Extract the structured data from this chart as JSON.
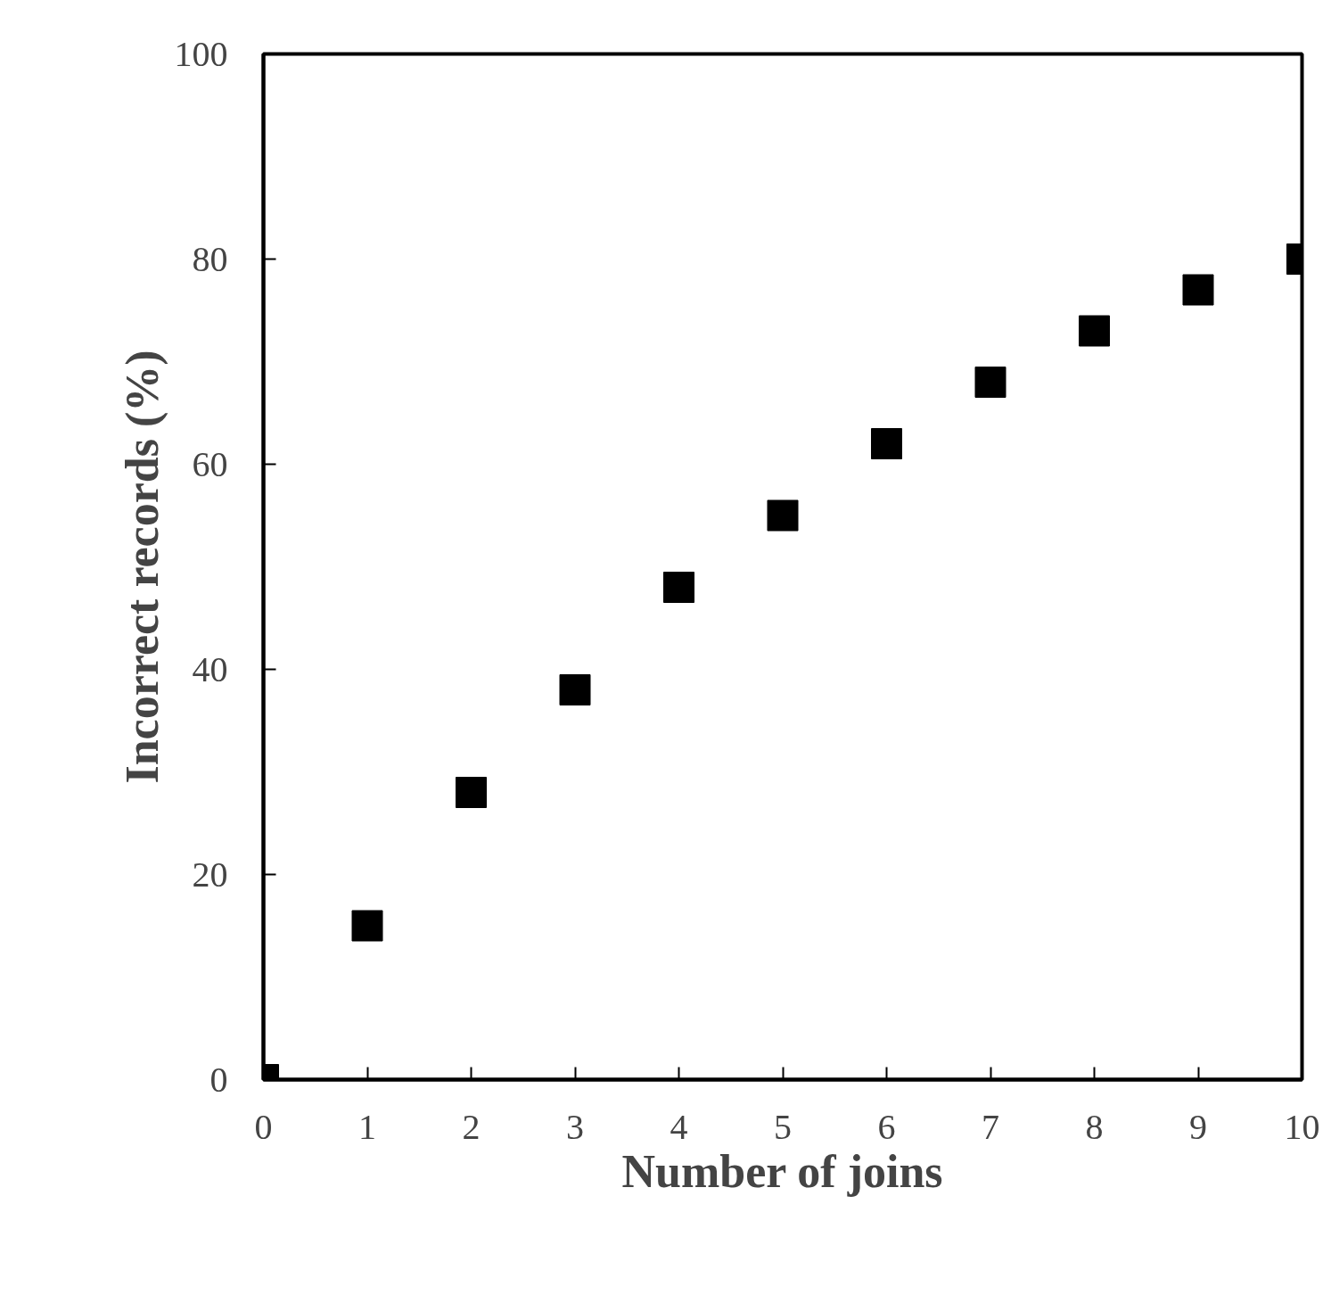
{
  "chart_data": {
    "type": "scatter",
    "xlabel": "Number of joins",
    "ylabel": "Incorrect records (%)",
    "x": [
      0,
      1,
      2,
      3,
      4,
      5,
      6,
      7,
      8,
      9,
      10
    ],
    "series": [
      {
        "color": "#000000",
        "values": [
          0,
          15,
          28,
          38,
          48,
          55,
          62,
          68,
          73,
          77,
          80
        ]
      }
    ],
    "xlim": [
      0,
      10
    ],
    "ylim": [
      0,
      100
    ],
    "xticks": [
      0,
      1,
      2,
      3,
      4,
      5,
      6,
      7,
      8,
      9,
      10
    ],
    "yticks": [
      0,
      20,
      40,
      60,
      80,
      100
    ],
    "marker": "square"
  }
}
